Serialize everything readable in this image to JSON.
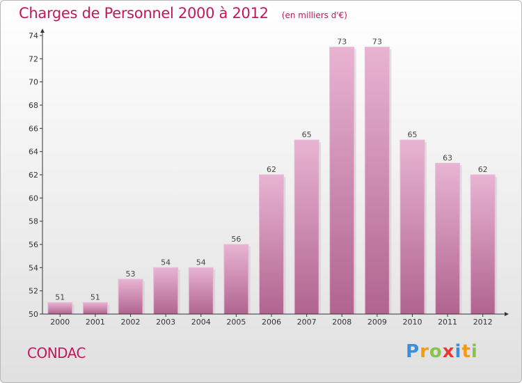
{
  "title": "Charges de Personnel 2000 à 2012",
  "subtitle": "(en milliers d'€)",
  "commune": "CONDAC",
  "logo": {
    "letters": [
      "P",
      "r",
      "o",
      "x",
      "i",
      "t",
      "i"
    ],
    "colors": [
      "#3a8fd6",
      "#f39c12",
      "#8bc34a",
      "#e53935",
      "#3a8fd6",
      "#f39c12",
      "#8bc34a"
    ]
  },
  "colors": {
    "bar": "#d584b4",
    "bar_light": "#e8b4d2",
    "bar_dark": "#b0648f",
    "accent": "#c2185b"
  },
  "chart_data": {
    "type": "bar",
    "categories": [
      "2000",
      "2001",
      "2002",
      "2003",
      "2004",
      "2005",
      "2006",
      "2007",
      "2008",
      "2009",
      "2010",
      "2011",
      "2012"
    ],
    "values": [
      51,
      51,
      53,
      54,
      54,
      56,
      62,
      65,
      73,
      73,
      65,
      63,
      62
    ],
    "ylim": [
      50,
      74
    ],
    "yticks": [
      50,
      52,
      54,
      56,
      58,
      60,
      62,
      64,
      66,
      68,
      70,
      72,
      74
    ],
    "grid": false,
    "data_labels": true
  }
}
